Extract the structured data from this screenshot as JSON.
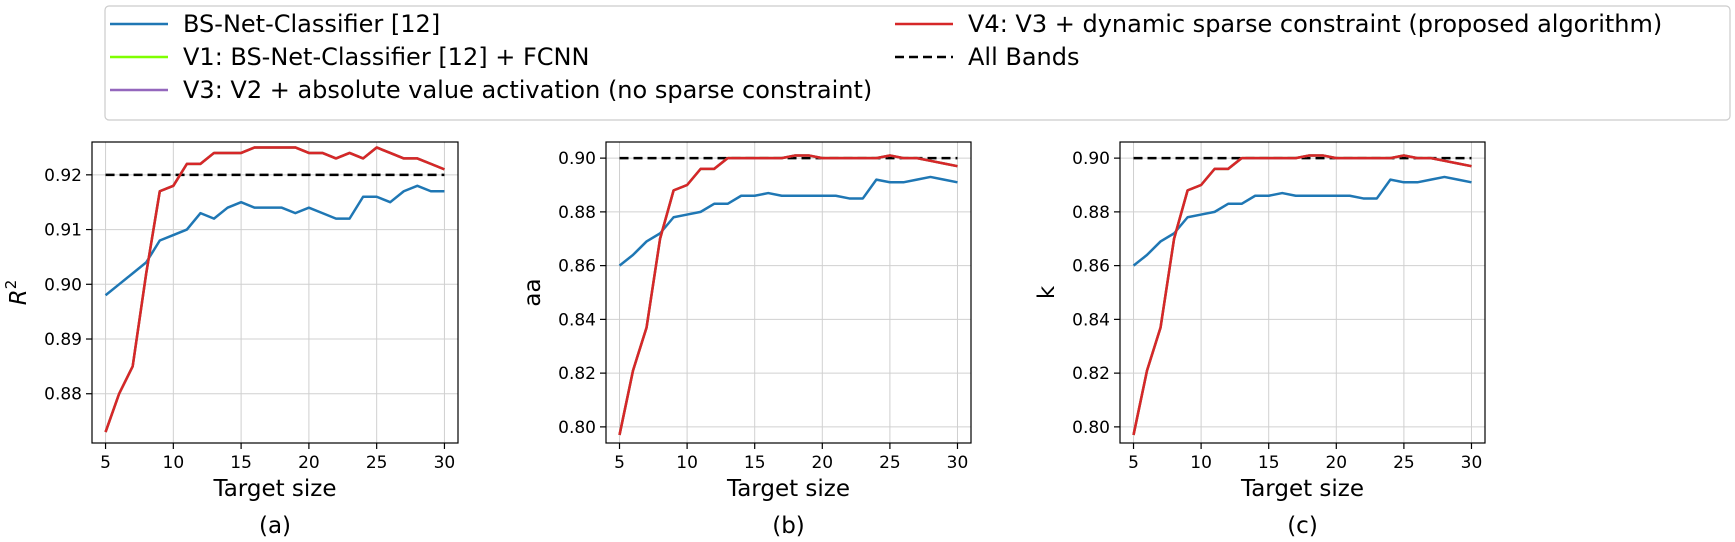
{
  "legend": {
    "entries": [
      {
        "label": "BS-Net-Classifier [12]",
        "color": "#1f77b4",
        "dash": "solid"
      },
      {
        "label": "V1: BS-Net-Classifier [12] + FCNN",
        "color": "#7fff00",
        "dash": "solid"
      },
      {
        "label": "V3: V2 + absolute value activation (no sparse constraint)",
        "color": "#9467bd",
        "dash": "solid"
      },
      {
        "label": "V4: V3 + dynamic sparse constraint (proposed algorithm)",
        "color": "#d62728",
        "dash": "solid"
      },
      {
        "label": "All Bands",
        "color": "#000000",
        "dash": "dashed"
      }
    ]
  },
  "chart_data": [
    {
      "type": "line",
      "panel_label": "(a)",
      "xlabel": "Target size",
      "ylabel": "R",
      "ylabel_superscript": "2",
      "xlim": [
        4,
        31
      ],
      "ylim": [
        0.871,
        0.926
      ],
      "xticks": [
        5,
        10,
        15,
        20,
        25,
        30
      ],
      "yticks": [
        0.88,
        0.89,
        0.9,
        0.91,
        0.92
      ],
      "ytick_labels": [
        "0.88",
        "0.89",
        "0.90",
        "0.91",
        "0.92"
      ],
      "x": [
        5,
        6,
        7,
        8,
        9,
        10,
        11,
        12,
        13,
        14,
        15,
        16,
        17,
        18,
        19,
        20,
        21,
        22,
        23,
        24,
        25,
        26,
        27,
        28,
        29,
        30
      ],
      "series": [
        {
          "name": "BS-Net-Classifier [12]",
          "color": "#1f77b4",
          "values": [
            0.898,
            0.9,
            0.902,
            0.904,
            0.908,
            0.909,
            0.91,
            0.913,
            0.912,
            0.914,
            0.915,
            0.914,
            0.914,
            0.914,
            0.913,
            0.914,
            0.913,
            0.912,
            0.912,
            0.916,
            0.916,
            0.915,
            0.917,
            0.918,
            0.917,
            0.917
          ]
        },
        {
          "name": "V1: BS-Net-Classifier [12] + FCNN",
          "color": "#7fff00",
          "values": [
            0.873,
            0.88,
            0.885,
            0.902,
            0.917,
            0.918,
            0.922,
            0.922,
            0.924,
            0.924,
            0.924,
            0.925,
            0.925,
            0.925,
            0.925,
            0.924,
            0.924,
            0.923,
            0.924,
            0.923,
            0.925,
            0.924,
            0.923,
            0.923,
            0.922,
            0.921
          ]
        },
        {
          "name": "V3: V2 + absolute value activation (no sparse constraint)",
          "color": "#9467bd",
          "values": [
            0.873,
            0.88,
            0.885,
            0.902,
            0.917,
            0.918,
            0.922,
            0.922,
            0.924,
            0.924,
            0.924,
            0.925,
            0.925,
            0.925,
            0.925,
            0.924,
            0.924,
            0.923,
            0.924,
            0.923,
            0.925,
            0.924,
            0.923,
            0.923,
            0.922,
            0.921
          ]
        },
        {
          "name": "V4: V3 + dynamic sparse constraint (proposed algorithm)",
          "color": "#d62728",
          "values": [
            0.873,
            0.88,
            0.885,
            0.902,
            0.917,
            0.918,
            0.922,
            0.922,
            0.924,
            0.924,
            0.924,
            0.925,
            0.925,
            0.925,
            0.925,
            0.924,
            0.924,
            0.923,
            0.924,
            0.923,
            0.925,
            0.924,
            0.923,
            0.923,
            0.922,
            0.921
          ]
        }
      ],
      "baseline": {
        "name": "All Bands",
        "value": 0.92,
        "color": "#000000"
      }
    },
    {
      "type": "line",
      "panel_label": "(b)",
      "xlabel": "Target size",
      "ylabel": "aa",
      "xlim": [
        4,
        31
      ],
      "ylim": [
        0.794,
        0.906
      ],
      "xticks": [
        5,
        10,
        15,
        20,
        25,
        30
      ],
      "yticks": [
        0.8,
        0.82,
        0.84,
        0.86,
        0.88,
        0.9
      ],
      "ytick_labels": [
        "0.80",
        "0.82",
        "0.84",
        "0.86",
        "0.88",
        "0.90"
      ],
      "x": [
        5,
        6,
        7,
        8,
        9,
        10,
        11,
        12,
        13,
        14,
        15,
        16,
        17,
        18,
        19,
        20,
        21,
        22,
        23,
        24,
        25,
        26,
        27,
        28,
        29,
        30
      ],
      "series": [
        {
          "name": "BS-Net-Classifier [12]",
          "color": "#1f77b4",
          "values": [
            0.86,
            0.864,
            0.869,
            0.872,
            0.878,
            0.879,
            0.88,
            0.883,
            0.883,
            0.886,
            0.886,
            0.887,
            0.886,
            0.886,
            0.886,
            0.886,
            0.886,
            0.885,
            0.885,
            0.892,
            0.891,
            0.891,
            0.892,
            0.893,
            0.892,
            0.891
          ]
        },
        {
          "name": "V1: BS-Net-Classifier [12] + FCNN",
          "color": "#7fff00",
          "values": [
            0.797,
            0.821,
            0.837,
            0.87,
            0.888,
            0.89,
            0.896,
            0.896,
            0.9,
            0.9,
            0.9,
            0.9,
            0.9,
            0.901,
            0.901,
            0.9,
            0.9,
            0.9,
            0.9,
            0.9,
            0.901,
            0.9,
            0.9,
            0.899,
            0.898,
            0.897
          ]
        },
        {
          "name": "V3: V2 + absolute value activation (no sparse constraint)",
          "color": "#9467bd",
          "values": [
            0.797,
            0.821,
            0.837,
            0.87,
            0.888,
            0.89,
            0.896,
            0.896,
            0.9,
            0.9,
            0.9,
            0.9,
            0.9,
            0.901,
            0.901,
            0.9,
            0.9,
            0.9,
            0.9,
            0.9,
            0.901,
            0.9,
            0.9,
            0.899,
            0.898,
            0.897
          ]
        },
        {
          "name": "V4: V3 + dynamic sparse constraint (proposed algorithm)",
          "color": "#d62728",
          "values": [
            0.797,
            0.821,
            0.837,
            0.87,
            0.888,
            0.89,
            0.896,
            0.896,
            0.9,
            0.9,
            0.9,
            0.9,
            0.9,
            0.901,
            0.901,
            0.9,
            0.9,
            0.9,
            0.9,
            0.9,
            0.901,
            0.9,
            0.9,
            0.899,
            0.898,
            0.897
          ]
        }
      ],
      "baseline": {
        "name": "All Bands",
        "value": 0.9,
        "color": "#000000"
      }
    },
    {
      "type": "line",
      "panel_label": "(c)",
      "xlabel": "Target size",
      "ylabel": "k",
      "xlim": [
        4,
        31
      ],
      "ylim": [
        0.794,
        0.906
      ],
      "xticks": [
        5,
        10,
        15,
        20,
        25,
        30
      ],
      "yticks": [
        0.8,
        0.82,
        0.84,
        0.86,
        0.88,
        0.9
      ],
      "ytick_labels": [
        "0.80",
        "0.82",
        "0.84",
        "0.86",
        "0.88",
        "0.90"
      ],
      "x": [
        5,
        6,
        7,
        8,
        9,
        10,
        11,
        12,
        13,
        14,
        15,
        16,
        17,
        18,
        19,
        20,
        21,
        22,
        23,
        24,
        25,
        26,
        27,
        28,
        29,
        30
      ],
      "series": [
        {
          "name": "BS-Net-Classifier [12]",
          "color": "#1f77b4",
          "values": [
            0.86,
            0.864,
            0.869,
            0.872,
            0.878,
            0.879,
            0.88,
            0.883,
            0.883,
            0.886,
            0.886,
            0.887,
            0.886,
            0.886,
            0.886,
            0.886,
            0.886,
            0.885,
            0.885,
            0.892,
            0.891,
            0.891,
            0.892,
            0.893,
            0.892,
            0.891
          ]
        },
        {
          "name": "V1: BS-Net-Classifier [12] + FCNN",
          "color": "#7fff00",
          "values": [
            0.797,
            0.821,
            0.837,
            0.87,
            0.888,
            0.89,
            0.896,
            0.896,
            0.9,
            0.9,
            0.9,
            0.9,
            0.9,
            0.901,
            0.901,
            0.9,
            0.9,
            0.9,
            0.9,
            0.9,
            0.901,
            0.9,
            0.9,
            0.899,
            0.898,
            0.897
          ]
        },
        {
          "name": "V3: V2 + absolute value activation (no sparse constraint)",
          "color": "#9467bd",
          "values": [
            0.797,
            0.821,
            0.837,
            0.87,
            0.888,
            0.89,
            0.896,
            0.896,
            0.9,
            0.9,
            0.9,
            0.9,
            0.9,
            0.901,
            0.901,
            0.9,
            0.9,
            0.9,
            0.9,
            0.9,
            0.901,
            0.9,
            0.9,
            0.899,
            0.898,
            0.897
          ]
        },
        {
          "name": "V4: V3 + dynamic sparse constraint (proposed algorithm)",
          "color": "#d62728",
          "values": [
            0.797,
            0.821,
            0.837,
            0.87,
            0.888,
            0.89,
            0.896,
            0.896,
            0.9,
            0.9,
            0.9,
            0.9,
            0.9,
            0.901,
            0.901,
            0.9,
            0.9,
            0.9,
            0.9,
            0.9,
            0.901,
            0.9,
            0.9,
            0.899,
            0.898,
            0.897
          ]
        }
      ],
      "baseline": {
        "name": "All Bands",
        "value": 0.9,
        "color": "#000000"
      }
    }
  ]
}
